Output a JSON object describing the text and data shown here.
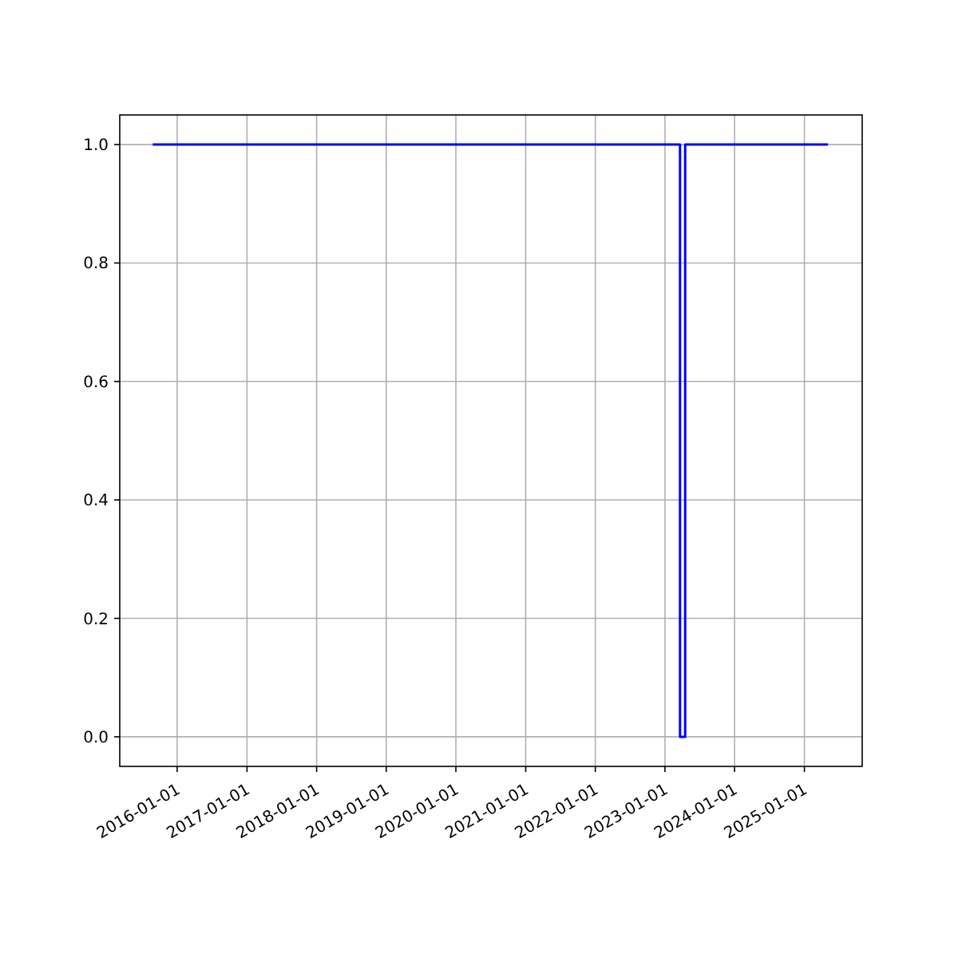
{
  "chart_data": {
    "type": "step",
    "x": [
      "2015-08-26",
      "2023-03-21",
      "2023-04-17",
      "2025-05-05"
    ],
    "series": [
      {
        "color": "#0000ff",
        "values": [
          1,
          0,
          1,
          1
        ]
      }
    ],
    "xlim": [
      "2015-03-06",
      "2025-10-31"
    ],
    "xticks": [
      "2016-01-01",
      "2017-01-01",
      "2018-01-01",
      "2019-01-01",
      "2020-01-01",
      "2021-01-01",
      "2022-01-01",
      "2023-01-01",
      "2024-01-01",
      "2025-01-01"
    ],
    "ylim": [
      -0.05,
      1.05
    ],
    "yticks": [
      {
        "value": 0,
        "label": "0.0"
      },
      {
        "value": 0.2,
        "label": "0.2"
      },
      {
        "value": 0.4,
        "label": "0.4"
      },
      {
        "value": 0.6,
        "label": "0.6"
      },
      {
        "value": 0.8,
        "label": "0.8"
      },
      {
        "value": 1,
        "label": "1.0"
      }
    ],
    "grid": true
  }
}
